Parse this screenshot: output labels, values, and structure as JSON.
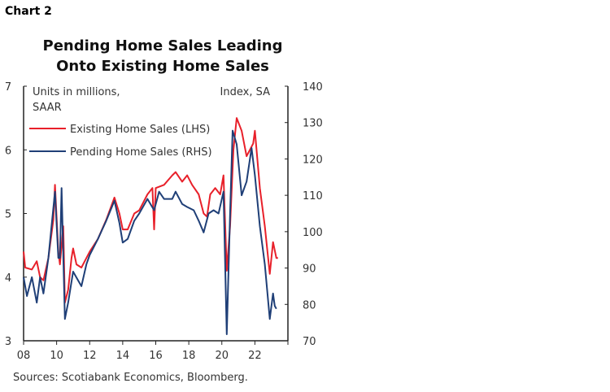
{
  "chart_label": "Chart 2",
  "source": "Sources: Scotiabank Economics, Bloomberg.",
  "chart_data": {
    "type": "line",
    "title": [
      "Pending Home Sales Leading",
      "Onto Existing Home Sales"
    ],
    "left_axis": {
      "label": [
        "Units in millions,",
        "SAAR"
      ],
      "range": [
        3,
        7
      ],
      "ticks": [
        "3",
        "4",
        "5",
        "6",
        "7"
      ]
    },
    "right_axis": {
      "label": "Index, SA",
      "range": [
        70,
        140
      ],
      "ticks": [
        "70",
        "80",
        "90",
        "100",
        "110",
        "120",
        "130",
        "140"
      ]
    },
    "x_axis": {
      "range": [
        2008,
        2024
      ],
      "ticks": [
        "08",
        "10",
        "12",
        "14",
        "16",
        "18",
        "20",
        "22"
      ],
      "tick_years": [
        2008,
        2010,
        2012,
        2014,
        2016,
        2018,
        2020,
        2022
      ]
    },
    "grid": false,
    "legend_placement": "top-left",
    "series": [
      {
        "name": "Existing Home Sales (LHS)",
        "axis": "left",
        "color": "#e8202a",
        "points": [
          [
            2008.0,
            4.4
          ],
          [
            2008.1,
            4.15
          ],
          [
            2008.5,
            4.12
          ],
          [
            2008.8,
            4.25
          ],
          [
            2009.0,
            4.0
          ],
          [
            2009.2,
            3.95
          ],
          [
            2009.5,
            4.3
          ],
          [
            2009.8,
            4.9
          ],
          [
            2009.9,
            5.45
          ],
          [
            2010.1,
            4.4
          ],
          [
            2010.2,
            4.2
          ],
          [
            2010.4,
            4.8
          ],
          [
            2010.5,
            3.6
          ],
          [
            2010.7,
            3.8
          ],
          [
            2010.9,
            4.3
          ],
          [
            2011.0,
            4.45
          ],
          [
            2011.2,
            4.2
          ],
          [
            2011.5,
            4.15
          ],
          [
            2011.8,
            4.3
          ],
          [
            2012.0,
            4.4
          ],
          [
            2012.5,
            4.6
          ],
          [
            2013.0,
            4.9
          ],
          [
            2013.5,
            5.25
          ],
          [
            2013.8,
            5.0
          ],
          [
            2014.0,
            4.75
          ],
          [
            2014.3,
            4.75
          ],
          [
            2014.7,
            5.0
          ],
          [
            2015.0,
            5.05
          ],
          [
            2015.5,
            5.3
          ],
          [
            2015.8,
            5.4
          ],
          [
            2015.9,
            4.75
          ],
          [
            2016.0,
            5.4
          ],
          [
            2016.5,
            5.45
          ],
          [
            2017.0,
            5.6
          ],
          [
            2017.2,
            5.65
          ],
          [
            2017.6,
            5.5
          ],
          [
            2017.9,
            5.6
          ],
          [
            2018.2,
            5.45
          ],
          [
            2018.6,
            5.3
          ],
          [
            2018.9,
            5.0
          ],
          [
            2019.1,
            4.95
          ],
          [
            2019.3,
            5.3
          ],
          [
            2019.6,
            5.4
          ],
          [
            2019.9,
            5.3
          ],
          [
            2020.1,
            5.6
          ],
          [
            2020.3,
            4.1
          ],
          [
            2020.5,
            4.8
          ],
          [
            2020.7,
            6.0
          ],
          [
            2020.9,
            6.5
          ],
          [
            2021.2,
            6.3
          ],
          [
            2021.5,
            5.9
          ],
          [
            2021.9,
            6.1
          ],
          [
            2022.0,
            6.3
          ],
          [
            2022.3,
            5.4
          ],
          [
            2022.6,
            4.8
          ],
          [
            2022.9,
            4.05
          ],
          [
            2023.1,
            4.55
          ],
          [
            2023.3,
            4.3
          ],
          [
            2023.4,
            4.3
          ]
        ]
      },
      {
        "name": "Pending Home Sales (RHS)",
        "axis": "right",
        "color": "#1f3f77",
        "points": [
          [
            2008.0,
            87.5
          ],
          [
            2008.2,
            82.3
          ],
          [
            2008.5,
            87.5
          ],
          [
            2008.8,
            80.5
          ],
          [
            2009.0,
            87.5
          ],
          [
            2009.2,
            83
          ],
          [
            2009.5,
            92.8
          ],
          [
            2009.9,
            111
          ],
          [
            2010.1,
            92.8
          ],
          [
            2010.2,
            92.8
          ],
          [
            2010.3,
            112
          ],
          [
            2010.5,
            76
          ],
          [
            2010.7,
            80.5
          ],
          [
            2011.0,
            89
          ],
          [
            2011.3,
            86.6
          ],
          [
            2011.5,
            85
          ],
          [
            2011.8,
            91
          ],
          [
            2012.0,
            93.6
          ],
          [
            2012.5,
            98
          ],
          [
            2013.0,
            103
          ],
          [
            2013.5,
            108.5
          ],
          [
            2013.8,
            102.4
          ],
          [
            2014.0,
            97
          ],
          [
            2014.3,
            98
          ],
          [
            2014.7,
            103
          ],
          [
            2015.0,
            105
          ],
          [
            2015.5,
            109
          ],
          [
            2015.9,
            105.9
          ],
          [
            2016.2,
            111
          ],
          [
            2016.5,
            109
          ],
          [
            2017.0,
            109
          ],
          [
            2017.2,
            111
          ],
          [
            2017.6,
            107.6
          ],
          [
            2017.9,
            106.8
          ],
          [
            2018.3,
            105.9
          ],
          [
            2018.6,
            103
          ],
          [
            2018.9,
            99.8
          ],
          [
            2019.2,
            105
          ],
          [
            2019.5,
            105.9
          ],
          [
            2019.8,
            105
          ],
          [
            2020.1,
            111
          ],
          [
            2020.3,
            71.8
          ],
          [
            2020.5,
            105
          ],
          [
            2020.65,
            127.8
          ],
          [
            2020.9,
            124
          ],
          [
            2021.2,
            110
          ],
          [
            2021.5,
            113.8
          ],
          [
            2021.8,
            123
          ],
          [
            2022.0,
            115.5
          ],
          [
            2022.3,
            101.5
          ],
          [
            2022.6,
            91
          ],
          [
            2022.9,
            76
          ],
          [
            2023.1,
            83
          ],
          [
            2023.2,
            79.6
          ],
          [
            2023.3,
            78.8
          ]
        ]
      }
    ]
  }
}
